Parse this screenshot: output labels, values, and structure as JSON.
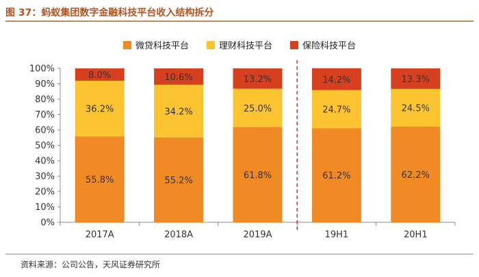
{
  "header": {
    "title": "图 37：蚂蚁集团数字金融科技平台收入结构拆分"
  },
  "source": "资料来源：公司公告，天风证券研究所",
  "colors": {
    "series0": "#F08A24",
    "series1": "#FBC430",
    "series2": "#D7401E",
    "divider": "#C0392B",
    "axis": "#888888"
  },
  "chart_data": {
    "type": "bar",
    "stacked": true,
    "categories": [
      "2017A",
      "2018A",
      "2019A",
      "19H1",
      "20H1"
    ],
    "series": [
      {
        "name": "微贷科技平台",
        "values": [
          55.8,
          55.2,
          61.8,
          61.2,
          62.2
        ],
        "labels": [
          "55.8%",
          "55.2%",
          "61.8%",
          "61.2%",
          "62.2%"
        ]
      },
      {
        "name": "理财科技平台",
        "values": [
          36.2,
          34.2,
          25.0,
          24.7,
          24.5
        ],
        "labels": [
          "36.2%",
          "34.2%",
          "25.0%",
          "24.7%",
          "24.5%"
        ]
      },
      {
        "name": "保险科技平台",
        "values": [
          8.0,
          10.6,
          13.2,
          14.2,
          13.3
        ],
        "labels": [
          "8.0%",
          "10.6%",
          "13.2%",
          "14.2%",
          "13.3%"
        ]
      }
    ],
    "yticks": [
      "0%",
      "10%",
      "20%",
      "30%",
      "40%",
      "50%",
      "60%",
      "70%",
      "80%",
      "90%",
      "100%"
    ],
    "ylim": [
      0,
      100
    ],
    "legend_position": "top-center",
    "grid": false,
    "divider_after_category": 2
  }
}
